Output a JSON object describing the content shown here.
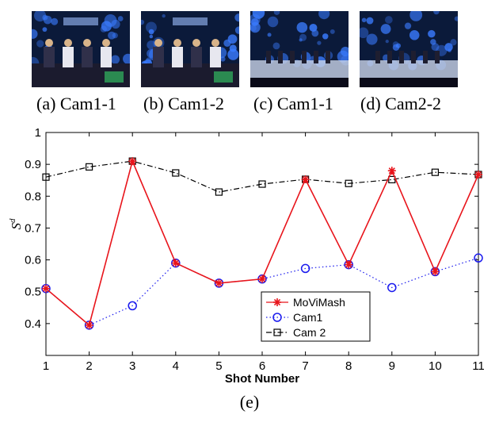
{
  "panels": [
    {
      "caption": "(a) Cam1-1",
      "camera": 1
    },
    {
      "caption": "(b) Cam1-2",
      "camera": 1
    },
    {
      "caption": "(c) Cam1-1",
      "camera": 2
    },
    {
      "caption": "(d) Cam2-2",
      "camera": 2
    }
  ],
  "figure_caption": "(e)",
  "colors": {
    "movimash": "#e8141b",
    "cam1": "#1a1aee",
    "cam2": "#000000",
    "stage_bg": "#0b1a3a",
    "stage_light": "#3a7bff"
  },
  "chart_data": {
    "type": "line",
    "xlabel": "Shot Number",
    "ylabel": "S",
    "ylabel_superscript": "d",
    "x": [
      1,
      2,
      3,
      4,
      5,
      6,
      7,
      8,
      9,
      10,
      11
    ],
    "xlim": [
      1,
      11
    ],
    "ylim": [
      0.3,
      1.0
    ],
    "yticks": [
      0.4,
      0.5,
      0.6,
      0.7,
      0.8,
      0.9,
      1
    ],
    "ytick_labels": [
      "0.4",
      "0.5",
      "0.6",
      "0.7",
      "0.8",
      "0.9",
      "1"
    ],
    "xtick_labels": [
      "1",
      "2",
      "3",
      "4",
      "5",
      "6",
      "7",
      "8",
      "9",
      "10",
      "11"
    ],
    "grid": false,
    "legend_position": "lower-right",
    "series": [
      {
        "name": "MoViMash",
        "style": "solid",
        "marker": "asterisk",
        "values": [
          0.51,
          0.395,
          0.91,
          0.59,
          0.527,
          0.54,
          0.853,
          0.585,
          0.88,
          0.563,
          0.868
        ]
      },
      {
        "name": "Cam1",
        "style": "dotted",
        "marker": "circle",
        "values": [
          0.51,
          0.395,
          0.456,
          0.59,
          0.527,
          0.54,
          0.573,
          0.585,
          0.513,
          0.563,
          0.606
        ]
      },
      {
        "name": "Cam 2",
        "style": "dashdot",
        "marker": "square",
        "values": [
          0.86,
          0.892,
          0.91,
          0.873,
          0.813,
          0.838,
          0.853,
          0.84,
          0.852,
          0.875,
          0.868
        ]
      }
    ]
  }
}
